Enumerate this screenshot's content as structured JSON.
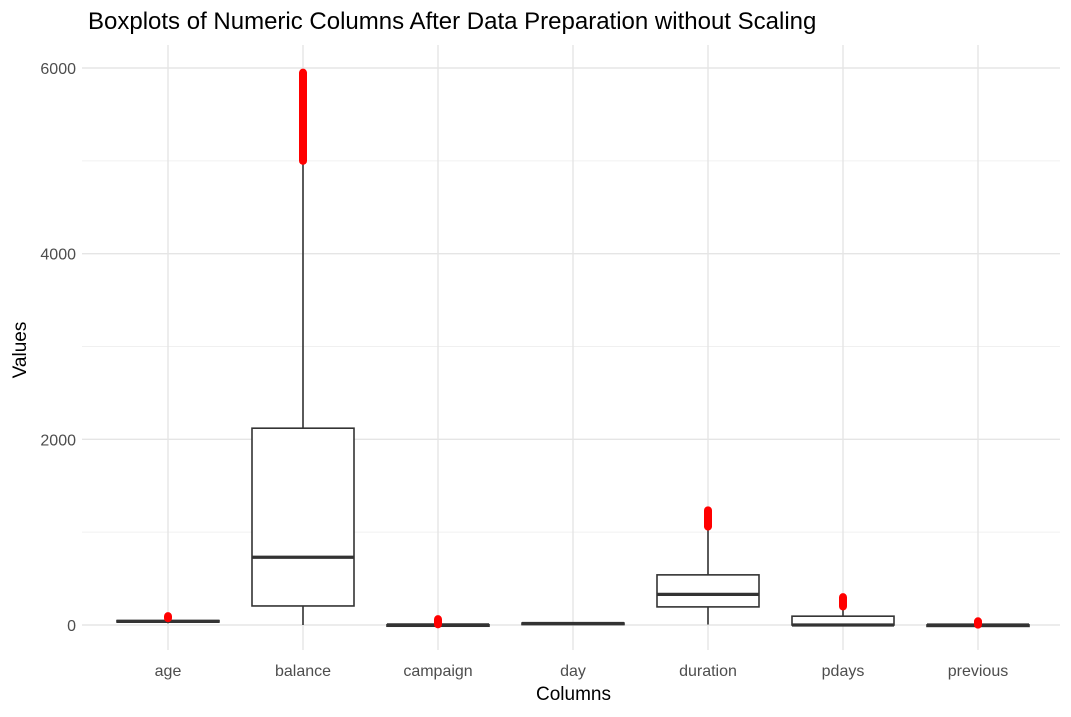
{
  "chart_data": {
    "type": "boxplot",
    "title": "Boxplots of Numeric Columns After Data Preparation without Scaling",
    "xlabel": "Columns",
    "ylabel": "Values",
    "ylim": [
      -150,
      6100
    ],
    "yticks": [
      0,
      2000,
      4000,
      6000
    ],
    "grid": true,
    "outlier_color": "#ff0000",
    "box_color": "#333333",
    "categories": [
      "age",
      "balance",
      "campaign",
      "day",
      "duration",
      "pdays",
      "previous"
    ],
    "boxes": [
      {
        "name": "age",
        "min": 18,
        "q1": 32,
        "median": 39,
        "q3": 48,
        "max": 72,
        "outliers": [
          73,
          95
        ]
      },
      {
        "name": "balance",
        "min": 0,
        "q1": 205,
        "median": 730,
        "q3": 2120,
        "max": 4980,
        "outliers": [
          5000,
          5950
        ]
      },
      {
        "name": "campaign",
        "min": 1,
        "q1": 1,
        "median": 2,
        "q3": 3,
        "max": 6,
        "outliers": [
          7,
          63
        ]
      },
      {
        "name": "day",
        "min": 1,
        "q1": 8,
        "median": 16,
        "q3": 21,
        "max": 31,
        "outliers": []
      },
      {
        "name": "duration",
        "min": 5,
        "q1": 195,
        "median": 330,
        "q3": 540,
        "max": 1040,
        "outliers": [
          1060,
          1235
        ]
      },
      {
        "name": "pdays",
        "min": 0,
        "q1": 0,
        "median": 0,
        "q3": 95,
        "max": 190,
        "outliers": [
          200,
          300
        ]
      },
      {
        "name": "previous",
        "min": 0,
        "q1": 0,
        "median": 0,
        "q3": 1,
        "max": 3,
        "outliers": [
          4,
          40
        ]
      }
    ]
  }
}
